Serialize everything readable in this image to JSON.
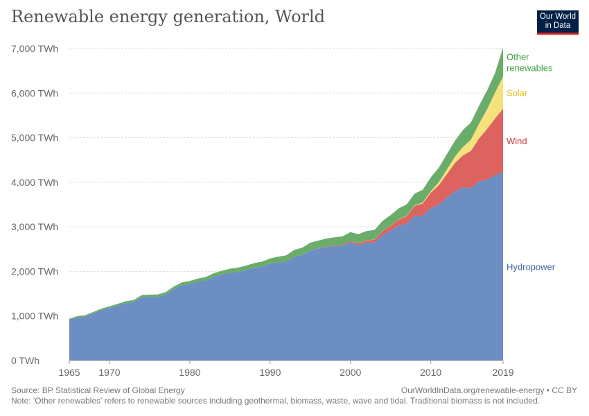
{
  "header": {
    "title": "Renewable energy generation, World",
    "logo_line1": "Our World",
    "logo_line2": "in Data"
  },
  "footer": {
    "source": "Source: BP Statistical Review of Global Energy",
    "url_license": "OurWorldInData.org/renewable-energy • CC BY",
    "note": "Note: 'Other renewables' refers to renewable sources including geothermal, biomass, waste, wave and tidal. Traditional biomass is not included."
  },
  "chart_data": {
    "type": "area",
    "stacked": true,
    "title": "Renewable energy generation, World",
    "xlabel": "",
    "ylabel": "",
    "ylim": [
      0,
      7000
    ],
    "xlim": [
      1965,
      2019
    ],
    "x_ticks": [
      "1965",
      "1970",
      "1980",
      "1990",
      "2000",
      "2010",
      "2019"
    ],
    "y_ticks": [
      "0 TWh",
      "1,000 TWh",
      "2,000 TWh",
      "3,000 TWh",
      "4,000 TWh",
      "5,000 TWh",
      "6,000 TWh",
      "7,000 TWh"
    ],
    "grid": true,
    "legend": "right (labels at series end)",
    "x": [
      1965,
      1966,
      1967,
      1968,
      1969,
      1970,
      1971,
      1972,
      1973,
      1974,
      1975,
      1976,
      1977,
      1978,
      1979,
      1980,
      1981,
      1982,
      1983,
      1984,
      1985,
      1986,
      1987,
      1988,
      1989,
      1990,
      1991,
      1992,
      1993,
      1994,
      1995,
      1996,
      1997,
      1998,
      1999,
      2000,
      2001,
      2002,
      2003,
      2004,
      2005,
      2006,
      2007,
      2008,
      2009,
      2010,
      2011,
      2012,
      2013,
      2014,
      2015,
      2016,
      2017,
      2018,
      2019
    ],
    "series": [
      {
        "name": "Hydropower",
        "color": "#6d8ec2",
        "values": [
          920,
          970,
          990,
          1060,
          1130,
          1180,
          1230,
          1290,
          1310,
          1420,
          1430,
          1430,
          1480,
          1600,
          1690,
          1720,
          1770,
          1800,
          1880,
          1930,
          1970,
          1990,
          2030,
          2080,
          2110,
          2170,
          2200,
          2220,
          2330,
          2370,
          2470,
          2510,
          2550,
          2570,
          2580,
          2650,
          2590,
          2640,
          2650,
          2820,
          2920,
          3030,
          3070,
          3250,
          3250,
          3420,
          3500,
          3660,
          3790,
          3890,
          3870,
          4020,
          4060,
          4160,
          4220
        ]
      },
      {
        "name": "Wind",
        "color": "#dd6361",
        "values": [
          0,
          0,
          0,
          0,
          0,
          0,
          0,
          0,
          0,
          0,
          0,
          0,
          0,
          0,
          0,
          0,
          0,
          0,
          0,
          0,
          0,
          0,
          0,
          0,
          0,
          0,
          0,
          1,
          1,
          2,
          4,
          6,
          8,
          10,
          15,
          31,
          38,
          52,
          63,
          85,
          104,
          132,
          171,
          220,
          276,
          346,
          435,
          523,
          640,
          713,
          834,
          959,
          1134,
          1270,
          1430
        ]
      },
      {
        "name": "Solar",
        "color": "#f6e27c",
        "values": [
          0,
          0,
          0,
          0,
          0,
          0,
          0,
          0,
          0,
          0,
          0,
          0,
          0,
          0,
          0,
          0,
          0,
          0,
          0,
          0,
          0,
          0,
          0,
          0,
          0,
          0,
          0,
          0,
          0,
          0,
          0,
          0,
          0,
          0,
          0,
          1,
          2,
          2,
          3,
          3,
          4,
          6,
          8,
          12,
          20,
          32,
          64,
          100,
          140,
          190,
          250,
          330,
          440,
          580,
          720
        ]
      },
      {
        "name": "Other renewables",
        "color": "#6aad6a",
        "values": [
          20,
          25,
          28,
          30,
          35,
          38,
          40,
          42,
          45,
          48,
          50,
          52,
          54,
          58,
          62,
          65,
          70,
          75,
          80,
          85,
          90,
          95,
          100,
          105,
          110,
          120,
          130,
          140,
          150,
          160,
          170,
          175,
          180,
          185,
          190,
          200,
          205,
          210,
          215,
          225,
          235,
          245,
          255,
          265,
          285,
          310,
          330,
          345,
          360,
          380,
          390,
          405,
          420,
          440,
          650
        ]
      }
    ]
  }
}
